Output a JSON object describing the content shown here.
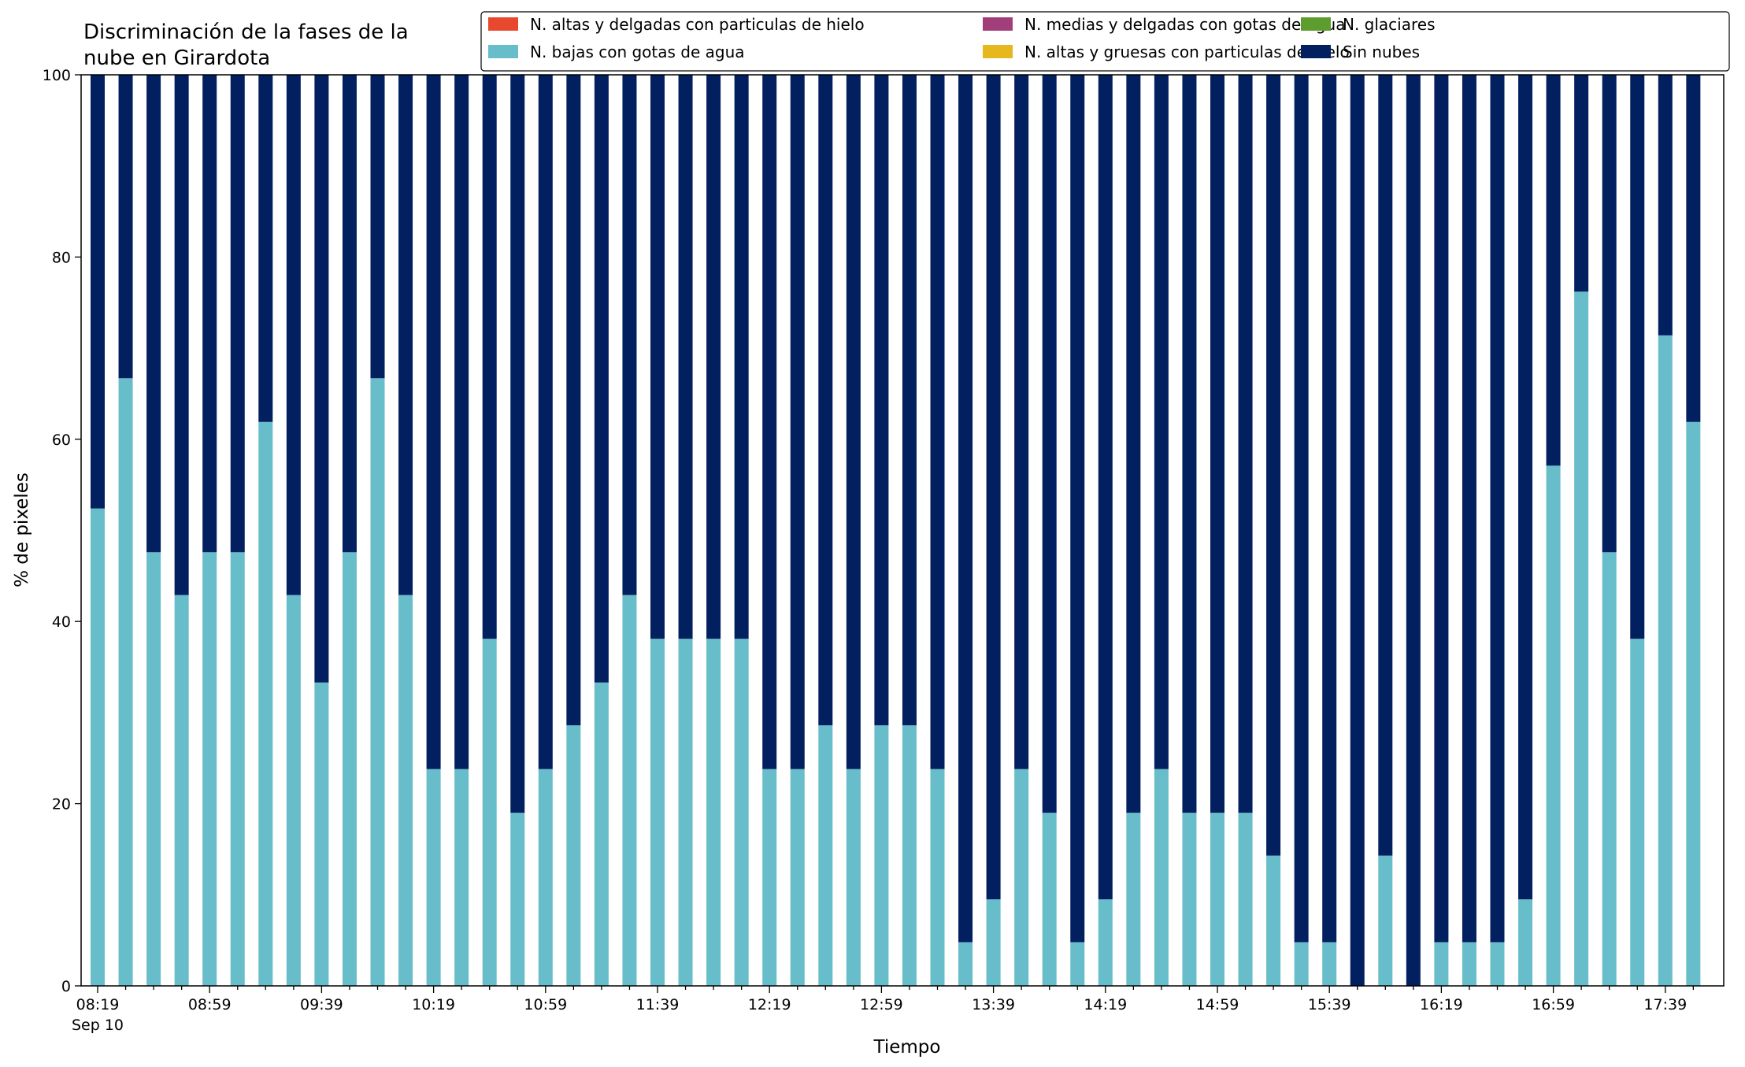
{
  "chart_data": {
    "type": "bar",
    "stacked": true,
    "title_lines": [
      "Discriminación de la fases de la",
      "nube en Girardota"
    ],
    "xlabel": "Tiempo",
    "ylabel": "% de pixeles",
    "ylim": [
      0,
      100
    ],
    "yticks": [
      0,
      20,
      40,
      60,
      80,
      100
    ],
    "x_tick_labels": [
      "08:19",
      "08:59",
      "09:39",
      "10:19",
      "10:59",
      "11:39",
      "12:19",
      "12:59",
      "13:39",
      "14:19",
      "14:59",
      "15:39",
      "16:19",
      "16:59",
      "17:39"
    ],
    "x_tick_every": 4,
    "x_date_label": "Sep 10",
    "interval_minutes": 10,
    "grid": false,
    "legend_position": "top-right",
    "legend": [
      {
        "name": "N. altas y delgadas con particulas de hielo",
        "color": "#e8482e"
      },
      {
        "name": "N. bajas con gotas de agua",
        "color": "#67bdca"
      },
      {
        "name": "N. medias y delgadas con gotas de agua",
        "color": "#a23f7a"
      },
      {
        "name": "N. altas y gruesas con particulas de hielo",
        "color": "#e6b81e"
      },
      {
        "name": "N. glaciares",
        "color": "#5c9d2e"
      },
      {
        "name": "Sin nubes",
        "color": "#021f60"
      }
    ],
    "categories": [
      "08:19",
      "08:29",
      "08:39",
      "08:49",
      "08:59",
      "09:09",
      "09:19",
      "09:29",
      "09:39",
      "09:49",
      "09:59",
      "10:09",
      "10:19",
      "10:29",
      "10:39",
      "10:49",
      "10:59",
      "11:09",
      "11:19",
      "11:29",
      "11:39",
      "11:49",
      "11:59",
      "12:09",
      "12:19",
      "12:29",
      "12:39",
      "12:49",
      "12:59",
      "13:09",
      "13:19",
      "13:29",
      "13:39",
      "13:49",
      "13:59",
      "14:09",
      "14:19",
      "14:29",
      "14:39",
      "14:49",
      "14:59",
      "15:09",
      "15:19",
      "15:29",
      "15:39",
      "15:49",
      "15:59",
      "16:09",
      "16:19",
      "16:29",
      "16:39",
      "16:49",
      "16:59",
      "17:09",
      "17:19",
      "17:29",
      "17:39",
      "17:49"
    ],
    "series": [
      {
        "name": "N. bajas con gotas de agua",
        "color": "#67bdca",
        "values": [
          52.4,
          66.7,
          47.6,
          42.9,
          47.6,
          47.6,
          61.9,
          42.9,
          33.3,
          47.6,
          66.7,
          42.9,
          23.8,
          23.8,
          38.1,
          19.0,
          23.8,
          28.6,
          33.3,
          42.9,
          38.1,
          38.1,
          38.1,
          38.1,
          23.8,
          23.8,
          28.6,
          23.8,
          28.6,
          28.6,
          23.8,
          4.8,
          9.5,
          23.8,
          19.0,
          4.8,
          9.5,
          19.0,
          23.8,
          19.0,
          19.0,
          19.0,
          14.3,
          4.8,
          4.8,
          0,
          14.3,
          0,
          4.8,
          4.8,
          4.8,
          9.5,
          57.1,
          76.2,
          47.6,
          38.1,
          71.4,
          61.9
        ]
      },
      {
        "name": "Sin nubes",
        "color": "#021f60",
        "values": [
          47.6,
          33.3,
          52.4,
          57.1,
          52.4,
          52.4,
          38.1,
          57.1,
          66.7,
          52.4,
          33.3,
          57.1,
          76.2,
          76.2,
          61.9,
          81.0,
          76.2,
          71.4,
          66.7,
          57.1,
          61.9,
          61.9,
          61.9,
          61.9,
          76.2,
          76.2,
          71.4,
          76.2,
          71.4,
          71.4,
          76.2,
          95.2,
          90.5,
          76.2,
          81.0,
          95.2,
          90.5,
          81.0,
          76.2,
          81.0,
          81.0,
          81.0,
          85.7,
          95.2,
          95.2,
          100,
          85.7,
          100,
          95.2,
          95.2,
          95.2,
          90.5,
          42.9,
          23.8,
          52.4,
          61.9,
          28.6,
          38.1
        ]
      }
    ]
  }
}
